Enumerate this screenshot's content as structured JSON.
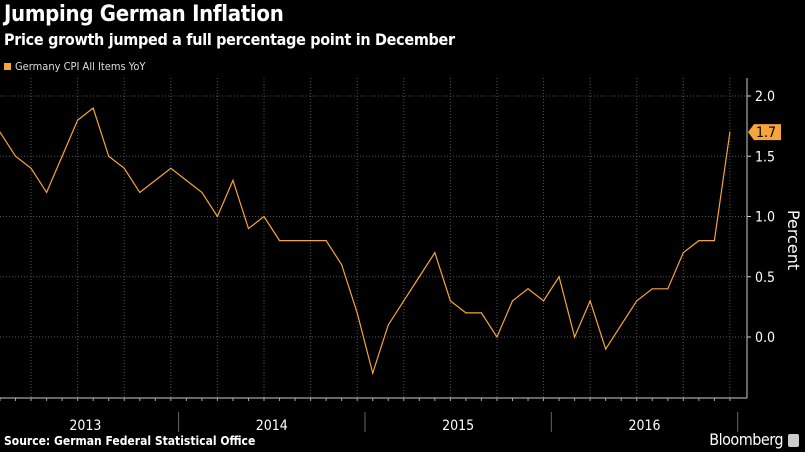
{
  "chart_data": {
    "type": "line",
    "title": "Jumping German Inflation",
    "subtitle": "Price growth jumped a full percentage point in December",
    "source": "Source: German Federal Statistical Office",
    "brand": "Bloomberg",
    "ylabel": "Percent",
    "xlabel": "",
    "ylim": [
      -0.5,
      2.15
    ],
    "yticks": [
      "2.0",
      "1.5",
      "1.0",
      "0.5",
      "0.0"
    ],
    "ytick_values": [
      2.0,
      1.5,
      1.0,
      0.5,
      0.0
    ],
    "year_labels": [
      "2013",
      "2014",
      "2015",
      "2016"
    ],
    "x_start": "2013-01",
    "x_end": "2016-12",
    "grid": true,
    "legend_position": "top-left",
    "last_value_label": "1.7",
    "series": [
      {
        "name": "Germany CPI All Items YoY",
        "color": "#f5a53c",
        "values": [
          1.7,
          1.5,
          1.4,
          1.2,
          1.5,
          1.8,
          1.9,
          1.5,
          1.4,
          1.2,
          1.3,
          1.4,
          1.3,
          1.2,
          1.0,
          1.3,
          0.9,
          1.0,
          0.8,
          0.8,
          0.8,
          0.8,
          0.6,
          0.2,
          -0.3,
          0.1,
          0.3,
          0.5,
          0.7,
          0.3,
          0.2,
          0.2,
          0.0,
          0.3,
          0.4,
          0.3,
          0.5,
          0.0,
          0.3,
          -0.1,
          0.1,
          0.3,
          0.4,
          0.4,
          0.7,
          0.8,
          0.8,
          1.7
        ]
      }
    ]
  }
}
